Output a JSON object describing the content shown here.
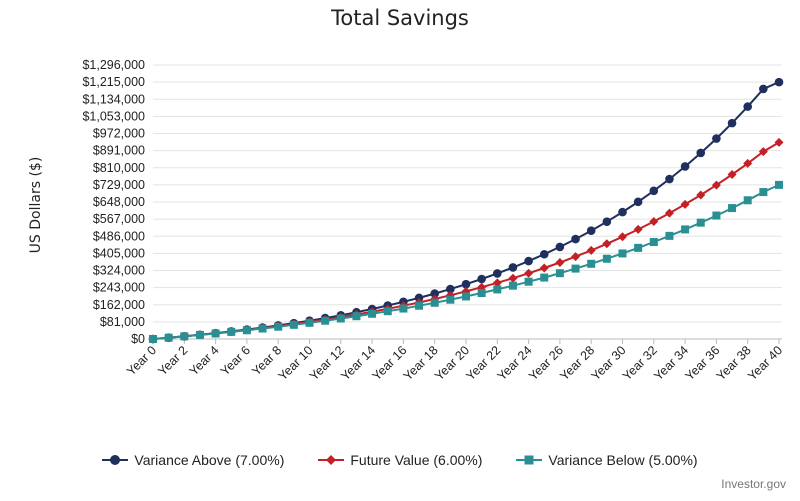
{
  "credit": "Investor.gov",
  "legend_colors": {
    "above": "#1f2f5e",
    "future": "#c42126",
    "below": "#2a8f93"
  },
  "chart_data": {
    "type": "line",
    "title": "Total Savings",
    "xlabel": "",
    "ylabel": "US Dollars ($)",
    "ylim": [
      0,
      1296000
    ],
    "yticks": [
      0,
      81000,
      162000,
      243000,
      324000,
      405000,
      486000,
      567000,
      648000,
      729000,
      810000,
      891000,
      972000,
      1053000,
      1134000,
      1215000,
      1296000
    ],
    "ytick_labels": [
      "$0",
      "$81,000",
      "$162,000",
      "$243,000",
      "$324,000",
      "$405,000",
      "$486,000",
      "$567,000",
      "$648,000",
      "$729,000",
      "$810,000",
      "$891,000",
      "$972,000",
      "$1,053,000",
      "$1,134,000",
      "$1,215,000",
      "$1,296,000"
    ],
    "x": [
      0,
      1,
      2,
      3,
      4,
      5,
      6,
      7,
      8,
      9,
      10,
      11,
      12,
      13,
      14,
      15,
      16,
      17,
      18,
      19,
      20,
      21,
      22,
      23,
      24,
      25,
      26,
      27,
      28,
      29,
      30,
      31,
      32,
      33,
      34,
      35,
      36,
      37,
      38,
      39,
      40
    ],
    "xtick_labels": [
      "Year 0",
      "Year 2",
      "Year 4",
      "Year 6",
      "Year 8",
      "Year 10",
      "Year 12",
      "Year 14",
      "Year 16",
      "Year 18",
      "Year 20",
      "Year 22",
      "Year 24",
      "Year 26",
      "Year 28",
      "Year 30",
      "Year 32",
      "Year 34",
      "Year 36",
      "Year 38",
      "Year 40"
    ],
    "xtick_values": [
      0,
      2,
      4,
      6,
      8,
      10,
      12,
      14,
      16,
      18,
      20,
      22,
      24,
      26,
      28,
      30,
      32,
      34,
      36,
      38,
      40
    ],
    "grid": true,
    "legend_position": "bottom",
    "series": [
      {
        "name": "Variance Above (7.00%)",
        "color": "#1f2f5e",
        "marker": "circle",
        "values": [
          0,
          6200,
          12900,
          20100,
          27700,
          35900,
          44700,
          54100,
          64200,
          75000,
          86500,
          99000,
          112300,
          126600,
          141900,
          158300,
          175800,
          194600,
          214700,
          236100,
          259100,
          283800,
          310100,
          338400,
          368600,
          400900,
          435500,
          472600,
          512300,
          554700,
          600200,
          648800,
          700800,
          756500,
          816100,
          879900,
          948100,
          1021100,
          1099200,
          1182800,
          1215000
        ]
      },
      {
        "name": "Future Value (6.00%)",
        "color": "#c42126",
        "marker": "diamond",
        "values": [
          0,
          6200,
          12700,
          19600,
          26900,
          34700,
          42900,
          51600,
          60800,
          70600,
          80900,
          91900,
          103500,
          115800,
          128900,
          142700,
          157300,
          172800,
          189300,
          206700,
          225200,
          244800,
          265600,
          287600,
          310900,
          335600,
          361800,
          389600,
          419100,
          450300,
          483400,
          518500,
          555700,
          595100,
          636900,
          681200,
          728100,
          777900,
          830600,
          886500,
          930000
        ]
      },
      {
        "name": "Variance Below (5.00%)",
        "color": "#2a8f93",
        "marker": "square",
        "values": [
          0,
          6100,
          12500,
          19200,
          26200,
          33600,
          41400,
          49600,
          58200,
          67100,
          76600,
          86500,
          96900,
          107800,
          119300,
          131400,
          144000,
          157300,
          171300,
          185900,
          201300,
          217500,
          234500,
          252300,
          271000,
          290600,
          311300,
          333000,
          355700,
          379600,
          404700,
          431100,
          458700,
          487800,
          518300,
          550300,
          583900,
          619200,
          656200,
          695100,
          729000
        ]
      }
    ]
  }
}
